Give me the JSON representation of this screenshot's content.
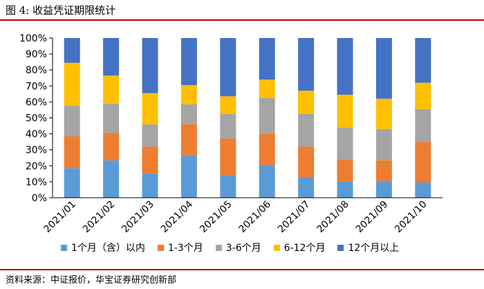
{
  "header": {
    "title": "图 4:  收益凭证期限统计"
  },
  "footer": {
    "source": "资料来源：中证报价，华宝证券研究创新部"
  },
  "colors": {
    "rule": "#b00000",
    "series": [
      "#5b9bd5",
      "#ed7d31",
      "#a5a5a5",
      "#ffc000",
      "#4472c4"
    ],
    "axis": "#000000",
    "grid": "#d9d9d9"
  },
  "chart_data": {
    "type": "bar",
    "stacked": true,
    "title": "收益凭证期限统计",
    "xlabel": "",
    "ylabel": "",
    "ylim": [
      0,
      100
    ],
    "yticks": [
      "0%",
      "10%",
      "20%",
      "30%",
      "40%",
      "50%",
      "60%",
      "70%",
      "80%",
      "90%",
      "100%"
    ],
    "categories": [
      "2021/01",
      "2021/02",
      "2021/03",
      "2021/04",
      "2021/05",
      "2021/06",
      "2021/07",
      "2021/08",
      "2021/09",
      "2021/10"
    ],
    "series": [
      {
        "name": "1个月（含）以内",
        "values": [
          18.5,
          23.5,
          15.0,
          26.5,
          14.0,
          20.5,
          13.0,
          10.0,
          10.5,
          9.5
        ]
      },
      {
        "name": "1-3个月",
        "values": [
          20.0,
          17.0,
          17.0,
          19.5,
          23.0,
          19.5,
          19.0,
          14.0,
          13.0,
          25.5
        ]
      },
      {
        "name": "3-6个月",
        "values": [
          19.0,
          18.5,
          14.0,
          12.5,
          15.5,
          22.5,
          20.5,
          20.0,
          19.5,
          20.5
        ]
      },
      {
        "name": "6-12个月",
        "values": [
          27.0,
          17.5,
          19.5,
          12.0,
          11.0,
          11.5,
          14.5,
          20.5,
          19.0,
          16.5
        ]
      },
      {
        "name": "12个月以上",
        "values": [
          15.5,
          23.5,
          34.5,
          29.5,
          36.5,
          26.0,
          33.0,
          35.5,
          38.0,
          28.0
        ]
      }
    ],
    "legend_position": "bottom"
  }
}
